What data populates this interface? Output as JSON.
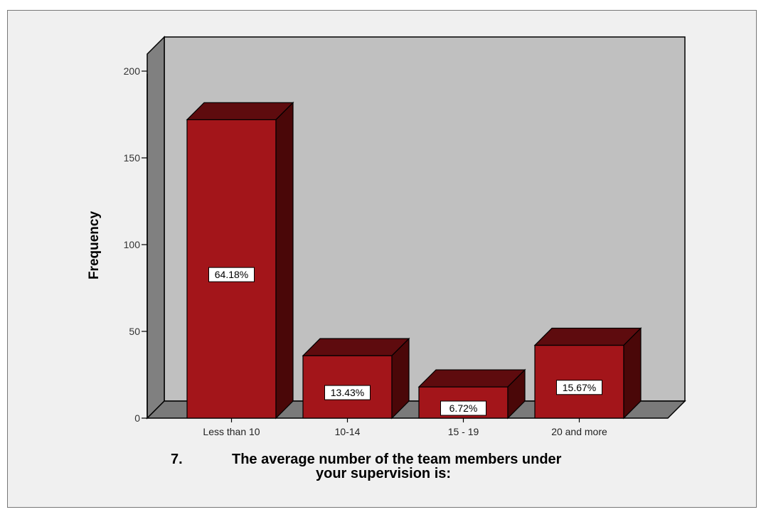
{
  "chart_data": {
    "type": "bar",
    "title_number": "7.",
    "title_line1": "The average number of the team members under",
    "title_line2": "your supervision is:",
    "xlabel": "",
    "ylabel": "Frequency",
    "categories": [
      "Less than 10",
      "10-14",
      "15 - 19",
      "20 and more"
    ],
    "values": [
      172,
      36,
      18,
      42
    ],
    "data_labels": [
      "64.18%",
      "13.43%",
      "6.72%",
      "15.67%"
    ],
    "ylim": [
      0,
      200
    ],
    "yticks": [
      0,
      50,
      100,
      150,
      200
    ],
    "grid": false,
    "three_d": true,
    "colors": {
      "bar_front": "#a3151a",
      "bar_top": "#5e0b0e",
      "bar_side": "#4a0708",
      "wall_back": "#c0c0c0",
      "wall_left": "#808080",
      "floor": "#7a7a7a",
      "frame_bg": "#f0f0f0"
    }
  }
}
